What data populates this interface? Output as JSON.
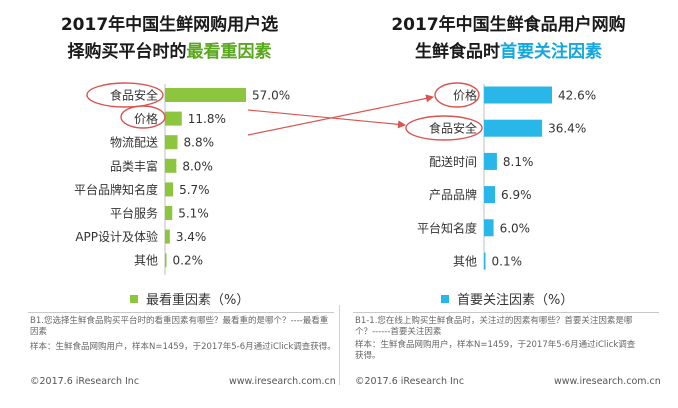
{
  "left": {
    "title_line1": "2017年中国生鲜网购用户选",
    "title_line2_prefix": "择购买平台时的",
    "title_line2_highlight": "最看重因素",
    "legend": "最看重因素（%）",
    "note": "B1.您选择生鲜食品购买平台时的看重因素有哪些？最看重的是哪个？----最看重因素",
    "source": "样本：生鲜食品网购用户，样本N=1459，于2017年5-6月通过iClick调查获得。",
    "footer_left": "©2017.6 iResearch Inc",
    "footer_right": "www.iresearch.com.cn"
  },
  "right": {
    "title_line1": "2017年中国生鲜食品用户网购",
    "title_line2_prefix": "生鲜食品时",
    "title_line2_highlight": "首要关注因素",
    "legend": "首要关注因素（%）",
    "note": "B1-1.您在线上购买生鲜食品时，关注过的因素有哪些？首要关注因素是哪个？------首要关注因素",
    "source": "样本：生鲜食品网购用户，样本N=1459，于2017年5-6月通过iClick调查获得。",
    "footer_left": "©2017.6 iResearch Inc",
    "footer_right": "www.iresearch.com.cn"
  },
  "colors": {
    "left_bar": "#8cc63e",
    "right_bar": "#29b6e8",
    "annotation": "#d9544f"
  },
  "chart_data": [
    {
      "type": "bar",
      "orientation": "horizontal",
      "categories": [
        "食品安全",
        "价格",
        "物流配送",
        "品类丰富",
        "平台品牌知名度",
        "平台服务",
        "APP设计及体验",
        "其他"
      ],
      "values": [
        57.0,
        11.8,
        8.8,
        8.0,
        5.7,
        5.1,
        3.4,
        0.2
      ],
      "labels": [
        "57.0%",
        "11.8%",
        "8.8%",
        "8.0%",
        "5.7%",
        "5.1%",
        "3.4%",
        "0.2%"
      ],
      "title": "2017年中国生鲜网购用户选择购买平台时的最看重因素",
      "legend": [
        "最看重因素（%）"
      ],
      "color": "#8cc63e"
    },
    {
      "type": "bar",
      "orientation": "horizontal",
      "categories": [
        "价格",
        "食品安全",
        "配送时间",
        "产品品牌",
        "平台知名度",
        "其他"
      ],
      "values": [
        42.6,
        36.4,
        8.1,
        6.9,
        6.0,
        0.1
      ],
      "labels": [
        "42.6%",
        "36.4%",
        "8.1%",
        "6.9%",
        "6.0%",
        "0.1%"
      ],
      "title": "2017年中国生鲜食品用户网购生鲜食品时首要关注因素",
      "legend": [
        "首要关注因素（%）"
      ],
      "color": "#29b6e8"
    }
  ]
}
